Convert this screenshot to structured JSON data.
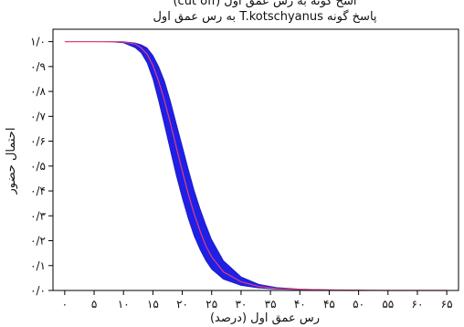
{
  "chart_data": {
    "type": "line",
    "title_top": "اسخ گونه به رس عمق اول (cut off)",
    "title": "پاسخ گونه T.kotschyanus به رس عمق اول",
    "xlabel": "رس عمق اول (درصد)",
    "ylabel": "احتمال حضور",
    "x_tick_labels": [
      "۰",
      "۵",
      "۱۰",
      "۱۵",
      "۲۰",
      "۲۵",
      "۳۰",
      "۳۵",
      "۴۰",
      "۴۵",
      "۵۰",
      "۵۵",
      "۶۰",
      "۶۵"
    ],
    "x_ticks": [
      0,
      5,
      10,
      15,
      20,
      25,
      30,
      35,
      40,
      45,
      50,
      55,
      60,
      65
    ],
    "y_tick_labels": [
      "۱/۰",
      "۰/۹",
      "۰/۸",
      "۰/۷",
      "۰/۶",
      "۰/۵",
      "۰/۴",
      "۰/۳",
      "۰/۲",
      "۰/۱",
      "۰/۰"
    ],
    "y_ticks": [
      1.0,
      0.9,
      0.8,
      0.7,
      0.6,
      0.5,
      0.4,
      0.3,
      0.2,
      0.1,
      0.0
    ],
    "xlim": [
      -2,
      67
    ],
    "ylim": [
      0,
      1.05
    ],
    "series": [
      {
        "role": "mean",
        "x": [
          0,
          5,
          8,
          10,
          12,
          13,
          14,
          15,
          16,
          17,
          18,
          19,
          20,
          21,
          22,
          23,
          24,
          25,
          27,
          30,
          33,
          36,
          40,
          45,
          50,
          55,
          60,
          65
        ],
        "y": [
          1.0,
          1.0,
          1.0,
          0.999,
          0.99,
          0.975,
          0.95,
          0.905,
          0.84,
          0.76,
          0.67,
          0.575,
          0.48,
          0.39,
          0.31,
          0.24,
          0.18,
          0.135,
          0.075,
          0.035,
          0.016,
          0.008,
          0.004,
          0.002,
          0.001,
          0.0,
          0.0,
          0.0
        ]
      },
      {
        "role": "upper",
        "x": [
          0,
          5,
          8,
          10,
          12,
          13,
          14,
          15,
          16,
          17,
          18,
          19,
          20,
          21,
          22,
          23,
          24,
          25,
          27,
          30,
          33,
          36,
          40,
          45,
          50,
          55,
          60,
          65
        ],
        "y": [
          1.0,
          1.0,
          1.0,
          1.0,
          0.995,
          0.988,
          0.975,
          0.945,
          0.9,
          0.84,
          0.76,
          0.67,
          0.58,
          0.49,
          0.405,
          0.33,
          0.265,
          0.205,
          0.12,
          0.055,
          0.025,
          0.012,
          0.006,
          0.003,
          0.001,
          0.0,
          0.0,
          0.0
        ]
      },
      {
        "role": "lower",
        "x": [
          0,
          5,
          8,
          10,
          12,
          13,
          14,
          15,
          16,
          17,
          18,
          19,
          20,
          21,
          22,
          23,
          24,
          25,
          27,
          30,
          33,
          36,
          40,
          45,
          50,
          55,
          60,
          65
        ],
        "y": [
          1.0,
          1.0,
          0.999,
          0.995,
          0.975,
          0.955,
          0.915,
          0.85,
          0.76,
          0.66,
          0.56,
          0.46,
          0.37,
          0.29,
          0.22,
          0.165,
          0.12,
          0.085,
          0.045,
          0.02,
          0.01,
          0.005,
          0.003,
          0.001,
          0.0,
          0.0,
          0.0,
          0.0
        ]
      }
    ],
    "colors": {
      "band": "#1f1fe6",
      "mean_line": "#e0407a",
      "axes": "#000000"
    },
    "grid": false
  }
}
